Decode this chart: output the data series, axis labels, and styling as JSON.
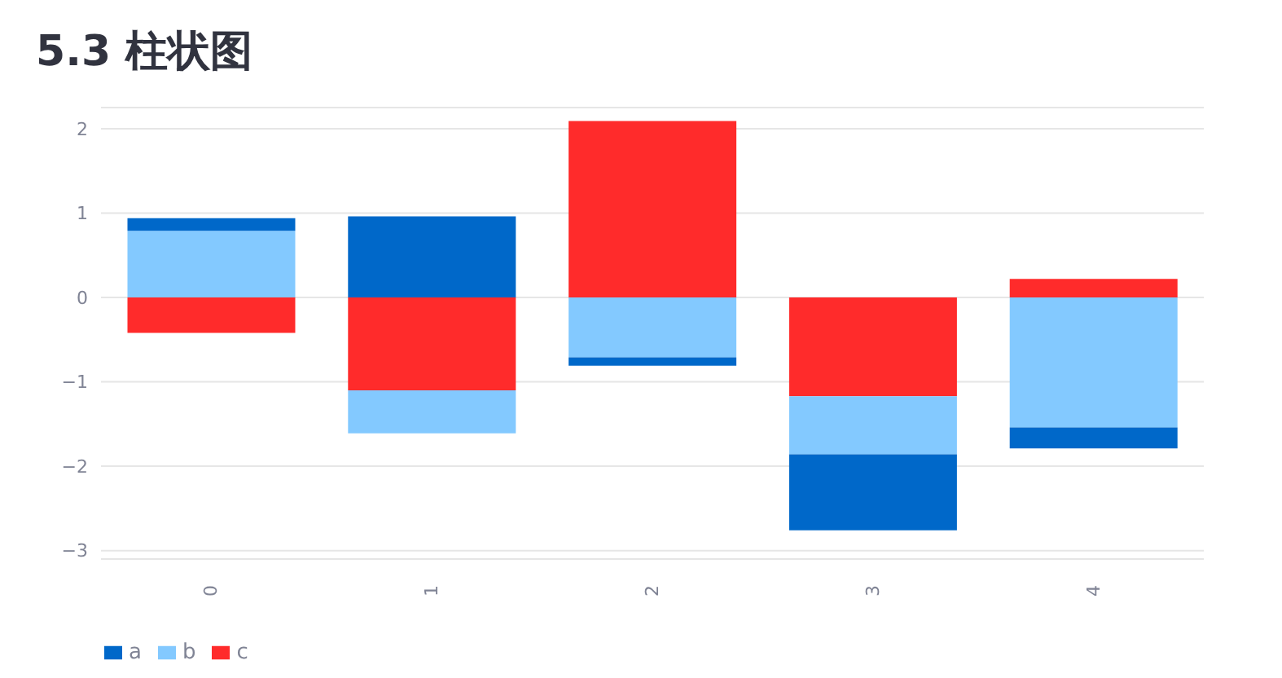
{
  "chart_data": {
    "type": "bar",
    "title": "5.3 柱状图",
    "stacked": true,
    "categories": [
      "0",
      "1",
      "2",
      "3",
      "4"
    ],
    "series": [
      {
        "name": "c",
        "color": "#ff2b2b",
        "values": [
          -0.42,
          -1.1,
          2.09,
          -1.17,
          0.22
        ]
      },
      {
        "name": "b",
        "color": "#83c9ff",
        "values": [
          0.79,
          -0.51,
          -0.71,
          -0.69,
          -1.54
        ]
      },
      {
        "name": "a",
        "color": "#0068c9",
        "values": [
          0.15,
          0.96,
          -0.1,
          -0.9,
          -0.25
        ]
      }
    ],
    "ylim": [
      -3.1,
      2.25
    ],
    "yticks": [
      {
        "value": -3,
        "label": "−3"
      },
      {
        "value": -2,
        "label": "−2"
      },
      {
        "value": -1,
        "label": "−1"
      },
      0,
      1,
      2
    ],
    "grid": "y",
    "legend": "bottom left"
  }
}
